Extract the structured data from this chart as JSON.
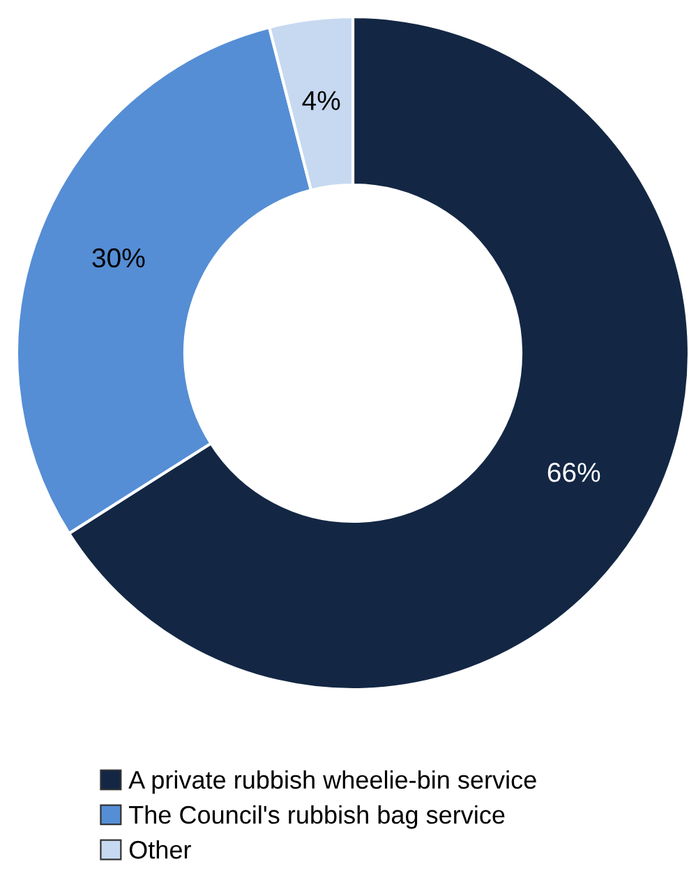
{
  "chart_data": {
    "type": "donut",
    "categories": [
      "A private rubbish wheelie-bin service",
      "The Council's rubbish bag service",
      "Other"
    ],
    "values": [
      66,
      30,
      4
    ],
    "colors": [
      "#132744",
      "#558ed5",
      "#c6d9f1"
    ],
    "value_labels": [
      "66%",
      "30%",
      "4%"
    ],
    "legend": "bottom"
  }
}
